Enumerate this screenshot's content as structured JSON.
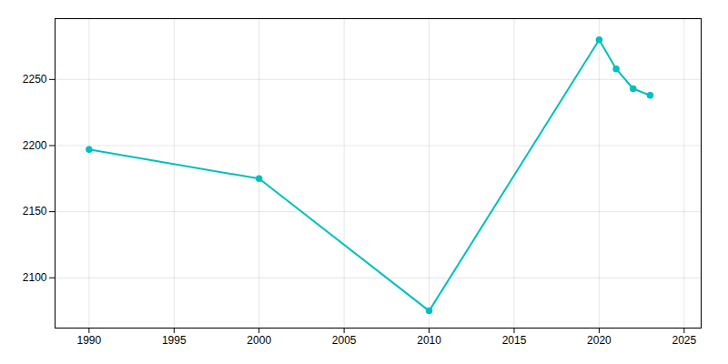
{
  "chart_data": {
    "type": "line",
    "x": [
      1990,
      2000,
      2010,
      2020,
      2021,
      2022,
      2023
    ],
    "values": [
      2197,
      2175,
      2075,
      2280,
      2258,
      2243,
      2238
    ],
    "color": "#00BFBF",
    "marker": "circle",
    "xlim": [
      1988,
      2026
    ],
    "ylim": [
      2062,
      2296
    ],
    "xticks": [
      1990,
      1995,
      2000,
      2005,
      2010,
      2015,
      2020,
      2025
    ],
    "yticks": [
      2100,
      2150,
      2200,
      2250
    ],
    "grid": true
  }
}
